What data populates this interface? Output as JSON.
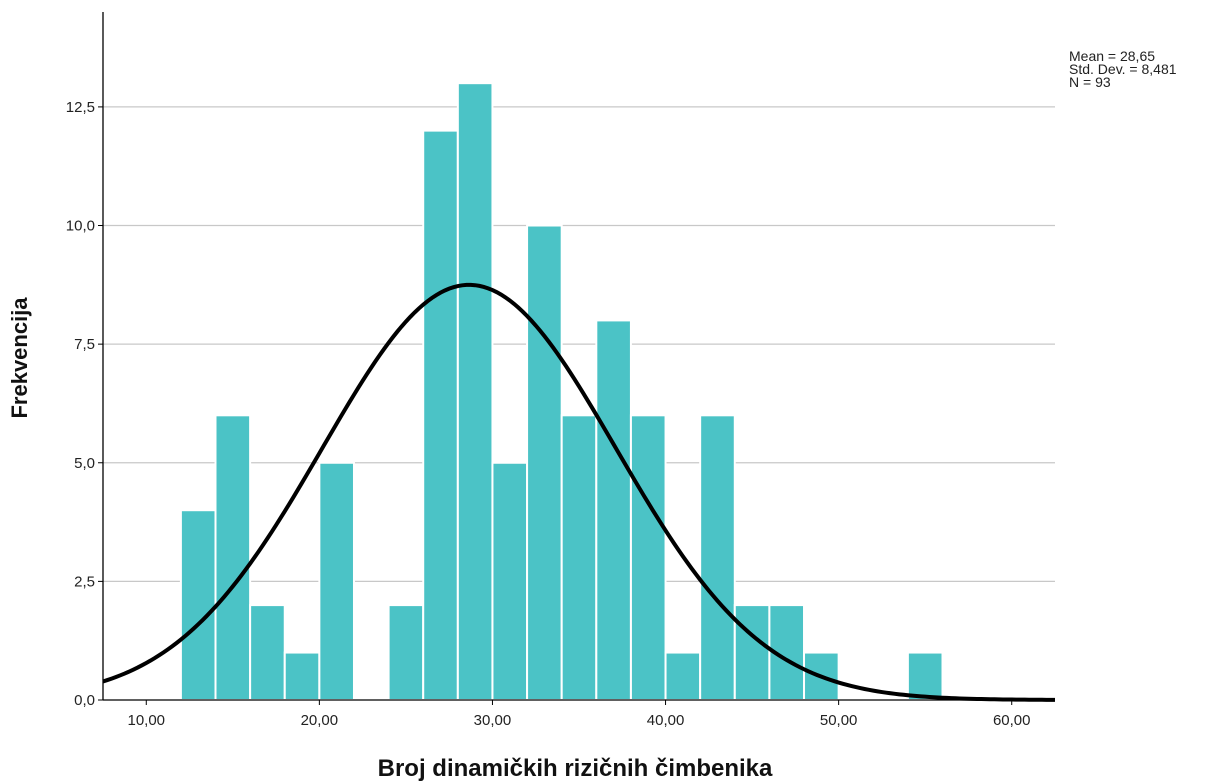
{
  "chart_data": {
    "type": "bar",
    "subtype": "histogram-with-normal-curve",
    "xlabel": "Broj dinamičkih rizičnih čimbenika",
    "ylabel": "Frekvencija",
    "xlim": [
      7.5,
      62.5
    ],
    "ylim": [
      0,
      14.5
    ],
    "x_ticks": [
      10,
      20,
      30,
      40,
      50,
      60
    ],
    "x_tick_labels": [
      "10,00",
      "20,00",
      "30,00",
      "40,00",
      "50,00",
      "60,00"
    ],
    "y_ticks": [
      0,
      2.5,
      5,
      7.5,
      10,
      12.5
    ],
    "y_tick_labels": [
      "0,0",
      "2,5",
      "5,0",
      "7,5",
      "10,0",
      "12,5"
    ],
    "grid": "horizontal",
    "bin_width": 2,
    "bins": [
      {
        "x0": 12,
        "x1": 14,
        "count": 4
      },
      {
        "x0": 14,
        "x1": 16,
        "count": 6
      },
      {
        "x0": 16,
        "x1": 18,
        "count": 2
      },
      {
        "x0": 18,
        "x1": 20,
        "count": 1
      },
      {
        "x0": 20,
        "x1": 22,
        "count": 5
      },
      {
        "x0": 22,
        "x1": 24,
        "count": 0
      },
      {
        "x0": 24,
        "x1": 26,
        "count": 2
      },
      {
        "x0": 26,
        "x1": 28,
        "count": 12
      },
      {
        "x0": 28,
        "x1": 30,
        "count": 13
      },
      {
        "x0": 30,
        "x1": 32,
        "count": 5
      },
      {
        "x0": 32,
        "x1": 34,
        "count": 10
      },
      {
        "x0": 34,
        "x1": 36,
        "count": 6
      },
      {
        "x0": 36,
        "x1": 38,
        "count": 8
      },
      {
        "x0": 38,
        "x1": 40,
        "count": 6
      },
      {
        "x0": 40,
        "x1": 42,
        "count": 1
      },
      {
        "x0": 42,
        "x1": 44,
        "count": 6
      },
      {
        "x0": 44,
        "x1": 46,
        "count": 2
      },
      {
        "x0": 46,
        "x1": 48,
        "count": 2
      },
      {
        "x0": 48,
        "x1": 50,
        "count": 1
      },
      {
        "x0": 50,
        "x1": 52,
        "count": 0
      },
      {
        "x0": 52,
        "x1": 54,
        "count": 0
      },
      {
        "x0": 54,
        "x1": 56,
        "count": 1
      }
    ],
    "normal_curve": {
      "mean": 28.65,
      "std": 8.481,
      "n": 93
    },
    "statistics": {
      "mean_label": "Mean = 28,65",
      "std_label": "Std. Dev. = 8,481",
      "n_label": "N = 93"
    },
    "legend_position": "top-right",
    "colors": {
      "bar": "#4bc3c6",
      "bar_edge": "#ffffff",
      "curve": "#000000",
      "grid": "#c8c8c8",
      "axis": "#000000"
    }
  }
}
